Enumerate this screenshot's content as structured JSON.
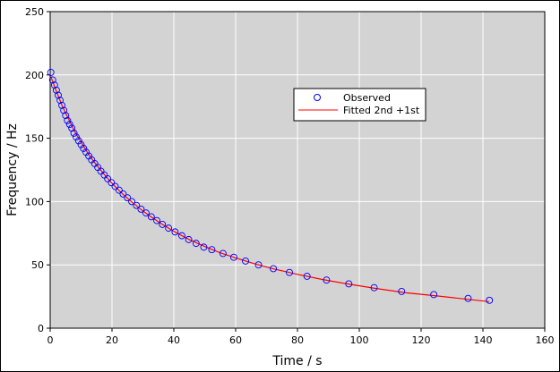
{
  "chart_data": {
    "type": "scatter",
    "title": "",
    "xlabel": "Time / s",
    "ylabel": "Frequency / Hz",
    "xlim": [
      0,
      160
    ],
    "ylim": [
      0,
      250
    ],
    "xticks": [
      0,
      20,
      40,
      60,
      80,
      100,
      120,
      140,
      160
    ],
    "yticks": [
      0,
      50,
      100,
      150,
      200,
      250
    ],
    "grid": true,
    "legend_position": "upper-right-inner",
    "colors": {
      "plot_background": "#d3d3d3",
      "grid": "#ffffff",
      "observed": "#0000ff",
      "fitted": "#ff0000"
    },
    "series": [
      {
        "name": "Observed",
        "kind": "markers",
        "x": [
          0.2,
          0.8,
          1.4,
          2.0,
          2.6,
          3.2,
          3.8,
          4.4,
          5.0,
          5.6,
          6.3,
          7.0,
          7.7,
          8.4,
          9.2,
          10.0,
          10.8,
          11.6,
          12.5,
          13.4,
          14.4,
          15.4,
          16.4,
          17.5,
          18.6,
          19.8,
          21.0,
          22.3,
          23.6,
          25.0,
          26.4,
          27.9,
          29.4,
          31.0,
          32.7,
          34.5,
          36.3,
          38.3,
          40.4,
          42.6,
          44.8,
          47.2,
          49.7,
          52.3,
          55.9,
          59.4,
          63.2,
          67.4,
          72.2,
          77.4,
          83.1,
          89.4,
          96.6,
          104.8,
          113.7,
          124.1,
          135.2,
          142.1
        ],
        "y": [
          202,
          196,
          192,
          188,
          184,
          180,
          176,
          172,
          168,
          164,
          161,
          158,
          154,
          151,
          148,
          145,
          142,
          139,
          136,
          133,
          130,
          127,
          124,
          121,
          118,
          115,
          112,
          109,
          106,
          103,
          100,
          97,
          94,
          91,
          88,
          85,
          82,
          79,
          76,
          73,
          70,
          67,
          64,
          62,
          59,
          56,
          53,
          50,
          47,
          44,
          41,
          38,
          35,
          32,
          29,
          26.5,
          23.5,
          22
        ]
      },
      {
        "name": "Fitted 2nd +1st",
        "kind": "line",
        "x": [
          0,
          2,
          4,
          6,
          8,
          10,
          12,
          14,
          16,
          18,
          20,
          23,
          26,
          29,
          32,
          36,
          40,
          45,
          50,
          55,
          60,
          66,
          72,
          80,
          88,
          96,
          105,
          115,
          125,
          135,
          142
        ],
        "y": [
          200,
          187,
          175,
          165,
          155,
          147,
          139,
          132,
          126,
          120,
          114.5,
          107,
          100.5,
          94.5,
          89,
          82.5,
          76.5,
          70,
          64.5,
          59.5,
          55.5,
          51,
          47,
          42.5,
          38.5,
          35,
          31.5,
          28,
          25.5,
          22.8,
          21
        ]
      }
    ]
  }
}
